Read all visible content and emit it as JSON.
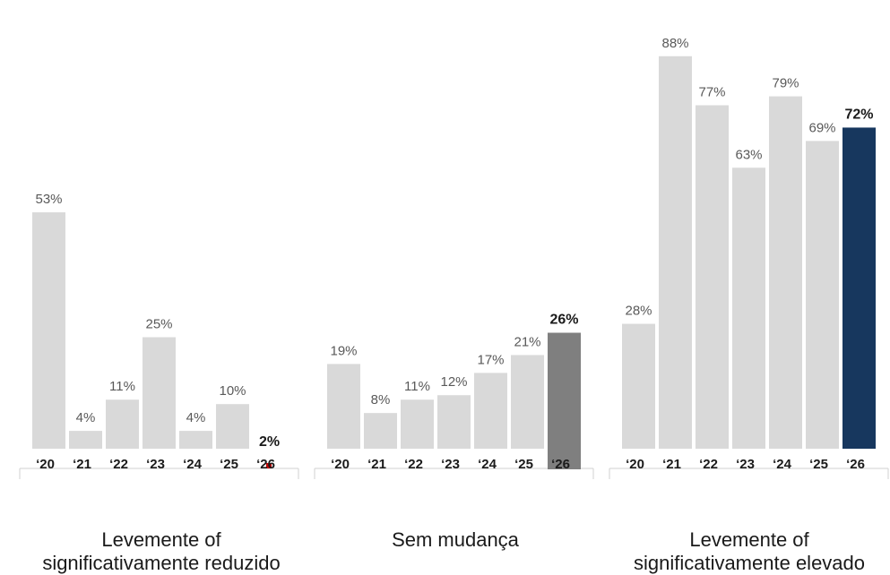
{
  "chart_data": {
    "type": "bar",
    "ylim": [
      0,
      100
    ],
    "groups": [
      {
        "label": "Levemente of\nsignificativamente reduzido",
        "categories": [
          "‘20",
          "‘21",
          "‘22",
          "‘23",
          "‘24",
          "‘25",
          "‘26"
        ],
        "values": [
          53,
          4,
          11,
          25,
          4,
          10,
          2
        ],
        "value_labels": [
          "53%",
          "4%",
          "11%",
          "25%",
          "4%",
          "10%",
          "2%"
        ],
        "highlight_color": "#c00000"
      },
      {
        "label": "Sem mudança",
        "categories": [
          "‘20",
          "‘21",
          "‘22",
          "‘23",
          "‘24",
          "‘25",
          "‘26"
        ],
        "values": [
          19,
          8,
          11,
          12,
          17,
          21,
          26
        ],
        "value_labels": [
          "19%",
          "8%",
          "11%",
          "12%",
          "17%",
          "21%",
          "26%"
        ],
        "highlight_color": "#7f7f7f"
      },
      {
        "label": "Levemente of\nsignificativamente elevado",
        "categories": [
          "‘20",
          "‘21",
          "‘22",
          "‘23",
          "‘24",
          "‘25",
          "‘26"
        ],
        "values": [
          28,
          88,
          77,
          63,
          79,
          69,
          72
        ],
        "value_labels": [
          "28%",
          "88%",
          "77%",
          "63%",
          "79%",
          "69%",
          "72%"
        ],
        "highlight_color": "#17375e"
      }
    ],
    "base_color": "#d9d9d9",
    "highlight_index": 6
  }
}
